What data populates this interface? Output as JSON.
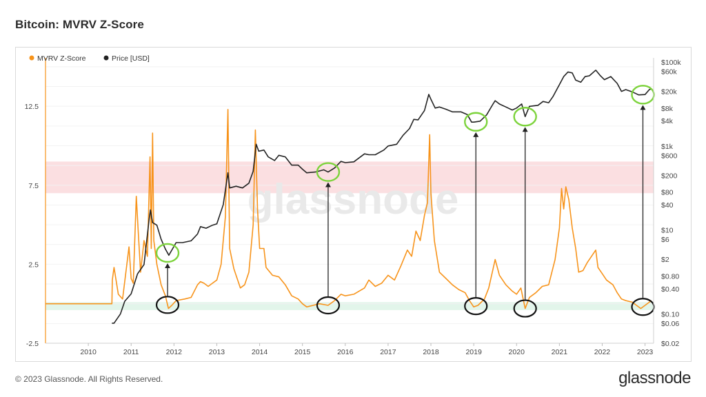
{
  "page": {
    "title": "Bitcoin: MVRV Z-Score",
    "footer": "© 2023 Glassnode. All Rights Reserved.",
    "brand": "glassnode",
    "watermark": "glassnode"
  },
  "chart_data": {
    "type": "line",
    "title": "Bitcoin: MVRV Z-Score",
    "legend": {
      "placement": "top-left",
      "items": [
        {
          "name": "MVRV Z-Score",
          "color": "#f7931a"
        },
        {
          "name": "Price [USD]",
          "color": "#222222"
        }
      ]
    },
    "x_ticks": [
      "2010",
      "2011",
      "2012",
      "2013",
      "2014",
      "2015",
      "2016",
      "2017",
      "2018",
      "2019",
      "2020",
      "2021",
      "2022",
      "2023"
    ],
    "x_range": [
      2009.0,
      2023.2
    ],
    "y_left": {
      "ticks": [
        "12.5",
        "7.5",
        "2.5",
        "-2.5"
      ],
      "tick_values": [
        12.5,
        7.5,
        2.5,
        -2.5
      ],
      "range": [
        -2.5,
        15.3
      ]
    },
    "y_right": {
      "scale": "log",
      "ticks": [
        "$100k",
        "$60k",
        "$20k",
        "$8k",
        "$4k",
        "$1k",
        "$600",
        "$200",
        "$80",
        "$40",
        "$10",
        "$6",
        "$2",
        "$0.80",
        "$0.40",
        "$0.10",
        "$0.06",
        "$0.02"
      ],
      "tick_values": [
        100000,
        60000,
        20000,
        8000,
        4000,
        1000,
        600,
        200,
        80,
        40,
        10,
        6,
        2,
        0.8,
        0.4,
        0.1,
        0.06,
        0.02
      ],
      "range": [
        0.02,
        100000
      ]
    },
    "bands": [
      {
        "name": "overvalued",
        "y_from": 7.0,
        "y_to": 9.0,
        "color": "#fbdfe1"
      },
      {
        "name": "undervalued",
        "y_from": -0.4,
        "y_to": 0.1,
        "color": "#e2f5ea"
      }
    ],
    "series": [
      {
        "name": "MVRV Z-Score",
        "axis": "left",
        "color": "#f7931a",
        "points": [
          [
            2009.0,
            0.0
          ],
          [
            2010.55,
            0.0
          ],
          [
            2010.56,
            1.5
          ],
          [
            2010.6,
            2.3
          ],
          [
            2010.7,
            0.6
          ],
          [
            2010.8,
            0.3
          ],
          [
            2010.95,
            3.6
          ],
          [
            2011.0,
            1.6
          ],
          [
            2011.05,
            1.3
          ],
          [
            2011.12,
            6.8
          ],
          [
            2011.16,
            4.8
          ],
          [
            2011.22,
            2.0
          ],
          [
            2011.3,
            4.0
          ],
          [
            2011.38,
            3.0
          ],
          [
            2011.44,
            9.3
          ],
          [
            2011.47,
            3.5
          ],
          [
            2011.5,
            10.8
          ],
          [
            2011.53,
            4.0
          ],
          [
            2011.6,
            2.5
          ],
          [
            2011.7,
            1.2
          ],
          [
            2011.8,
            0.5
          ],
          [
            2011.87,
            -0.3
          ],
          [
            2011.95,
            -0.1
          ],
          [
            2012.05,
            0.2
          ],
          [
            2012.25,
            0.3
          ],
          [
            2012.4,
            0.4
          ],
          [
            2012.55,
            1.2
          ],
          [
            2012.62,
            1.4
          ],
          [
            2012.7,
            1.3
          ],
          [
            2012.8,
            1.1
          ],
          [
            2012.9,
            1.3
          ],
          [
            2013.0,
            1.5
          ],
          [
            2013.1,
            2.5
          ],
          [
            2013.2,
            5.5
          ],
          [
            2013.26,
            12.3
          ],
          [
            2013.3,
            3.5
          ],
          [
            2013.4,
            2.2
          ],
          [
            2013.55,
            1.0
          ],
          [
            2013.65,
            1.2
          ],
          [
            2013.75,
            2.0
          ],
          [
            2013.85,
            5.0
          ],
          [
            2013.9,
            11.0
          ],
          [
            2013.95,
            6.0
          ],
          [
            2014.0,
            3.5
          ],
          [
            2014.1,
            3.5
          ],
          [
            2014.15,
            2.3
          ],
          [
            2014.3,
            1.8
          ],
          [
            2014.45,
            1.7
          ],
          [
            2014.6,
            1.2
          ],
          [
            2014.75,
            0.5
          ],
          [
            2014.9,
            0.3
          ],
          [
            2015.0,
            0.0
          ],
          [
            2015.1,
            -0.2
          ],
          [
            2015.25,
            -0.1
          ],
          [
            2015.4,
            0.0
          ],
          [
            2015.6,
            -0.1
          ],
          [
            2015.75,
            0.2
          ],
          [
            2015.9,
            0.6
          ],
          [
            2016.0,
            0.5
          ],
          [
            2016.2,
            0.6
          ],
          [
            2016.45,
            1.0
          ],
          [
            2016.55,
            1.5
          ],
          [
            2016.7,
            1.1
          ],
          [
            2016.85,
            1.3
          ],
          [
            2017.0,
            1.8
          ],
          [
            2017.15,
            1.5
          ],
          [
            2017.3,
            2.4
          ],
          [
            2017.45,
            3.4
          ],
          [
            2017.55,
            3.0
          ],
          [
            2017.65,
            4.6
          ],
          [
            2017.75,
            4.0
          ],
          [
            2017.85,
            5.6
          ],
          [
            2017.92,
            6.4
          ],
          [
            2017.97,
            10.7
          ],
          [
            2018.0,
            7.0
          ],
          [
            2018.08,
            4.0
          ],
          [
            2018.2,
            2.0
          ],
          [
            2018.35,
            1.6
          ],
          [
            2018.5,
            1.2
          ],
          [
            2018.65,
            0.9
          ],
          [
            2018.8,
            0.7
          ],
          [
            2018.9,
            0.2
          ],
          [
            2019.0,
            -0.2
          ],
          [
            2019.1,
            -0.1
          ],
          [
            2019.25,
            0.3
          ],
          [
            2019.35,
            1.0
          ],
          [
            2019.45,
            2.2
          ],
          [
            2019.5,
            2.8
          ],
          [
            2019.6,
            1.8
          ],
          [
            2019.75,
            1.2
          ],
          [
            2019.9,
            0.8
          ],
          [
            2020.0,
            0.6
          ],
          [
            2020.1,
            1.0
          ],
          [
            2020.2,
            -0.3
          ],
          [
            2020.3,
            0.4
          ],
          [
            2020.45,
            0.7
          ],
          [
            2020.6,
            1.1
          ],
          [
            2020.75,
            1.2
          ],
          [
            2020.9,
            2.8
          ],
          [
            2021.0,
            4.8
          ],
          [
            2021.05,
            7.3
          ],
          [
            2021.1,
            6.0
          ],
          [
            2021.15,
            7.4
          ],
          [
            2021.22,
            6.6
          ],
          [
            2021.3,
            4.8
          ],
          [
            2021.38,
            3.5
          ],
          [
            2021.45,
            2.0
          ],
          [
            2021.55,
            2.1
          ],
          [
            2021.65,
            2.6
          ],
          [
            2021.75,
            3.0
          ],
          [
            2021.85,
            3.4
          ],
          [
            2021.9,
            2.3
          ],
          [
            2022.0,
            1.9
          ],
          [
            2022.1,
            1.5
          ],
          [
            2022.25,
            1.2
          ],
          [
            2022.35,
            0.7
          ],
          [
            2022.45,
            0.3
          ],
          [
            2022.55,
            0.2
          ],
          [
            2022.7,
            0.1
          ],
          [
            2022.8,
            -0.1
          ],
          [
            2022.9,
            -0.3
          ],
          [
            2023.0,
            -0.1
          ],
          [
            2023.1,
            0.1
          ],
          [
            2023.15,
            0.2
          ]
        ]
      },
      {
        "name": "Price [USD]",
        "axis": "right",
        "color": "#222222",
        "points": [
          [
            2010.55,
            0.06
          ],
          [
            2010.6,
            0.06
          ],
          [
            2010.75,
            0.1
          ],
          [
            2010.85,
            0.2
          ],
          [
            2011.0,
            0.3
          ],
          [
            2011.15,
            0.9
          ],
          [
            2011.3,
            1.5
          ],
          [
            2011.42,
            18
          ],
          [
            2011.45,
            30
          ],
          [
            2011.5,
            15
          ],
          [
            2011.6,
            13
          ],
          [
            2011.7,
            6
          ],
          [
            2011.8,
            3.5
          ],
          [
            2011.88,
            2.5
          ],
          [
            2011.95,
            3.3
          ],
          [
            2012.05,
            5
          ],
          [
            2012.2,
            5
          ],
          [
            2012.4,
            5.5
          ],
          [
            2012.55,
            8
          ],
          [
            2012.62,
            12
          ],
          [
            2012.75,
            11
          ],
          [
            2012.9,
            13
          ],
          [
            2013.0,
            14
          ],
          [
            2013.15,
            40
          ],
          [
            2013.26,
            230
          ],
          [
            2013.3,
            100
          ],
          [
            2013.45,
            110
          ],
          [
            2013.6,
            100
          ],
          [
            2013.75,
            130
          ],
          [
            2013.85,
            250
          ],
          [
            2013.92,
            1100
          ],
          [
            2013.98,
            750
          ],
          [
            2014.1,
            800
          ],
          [
            2014.2,
            550
          ],
          [
            2014.35,
            450
          ],
          [
            2014.45,
            600
          ],
          [
            2014.6,
            550
          ],
          [
            2014.75,
            350
          ],
          [
            2014.9,
            350
          ],
          [
            2015.0,
            280
          ],
          [
            2015.1,
            230
          ],
          [
            2015.3,
            240
          ],
          [
            2015.5,
            270
          ],
          [
            2015.6,
            240
          ],
          [
            2015.75,
            300
          ],
          [
            2015.9,
            430
          ],
          [
            2016.0,
            400
          ],
          [
            2016.2,
            420
          ],
          [
            2016.45,
            650
          ],
          [
            2016.55,
            620
          ],
          [
            2016.7,
            620
          ],
          [
            2016.9,
            800
          ],
          [
            2017.0,
            1000
          ],
          [
            2017.2,
            1100
          ],
          [
            2017.35,
            1800
          ],
          [
            2017.5,
            2600
          ],
          [
            2017.6,
            4300
          ],
          [
            2017.7,
            4200
          ],
          [
            2017.85,
            7000
          ],
          [
            2017.95,
            17000
          ],
          [
            2018.0,
            13000
          ],
          [
            2018.1,
            8000
          ],
          [
            2018.2,
            8500
          ],
          [
            2018.35,
            7500
          ],
          [
            2018.5,
            6500
          ],
          [
            2018.7,
            6500
          ],
          [
            2018.85,
            5600
          ],
          [
            2018.95,
            3700
          ],
          [
            2019.0,
            3700
          ],
          [
            2019.15,
            3900
          ],
          [
            2019.3,
            5500
          ],
          [
            2019.45,
            10000
          ],
          [
            2019.5,
            12000
          ],
          [
            2019.6,
            10000
          ],
          [
            2019.75,
            8500
          ],
          [
            2019.9,
            7200
          ],
          [
            2020.0,
            8000
          ],
          [
            2020.12,
            10000
          ],
          [
            2020.2,
            5000
          ],
          [
            2020.3,
            8800
          ],
          [
            2020.5,
            9300
          ],
          [
            2020.62,
            11500
          ],
          [
            2020.75,
            10700
          ],
          [
            2020.85,
            15000
          ],
          [
            2021.0,
            29000
          ],
          [
            2021.1,
            45000
          ],
          [
            2021.2,
            58000
          ],
          [
            2021.3,
            55000
          ],
          [
            2021.38,
            37000
          ],
          [
            2021.5,
            33000
          ],
          [
            2021.6,
            45000
          ],
          [
            2021.7,
            47000
          ],
          [
            2021.85,
            64000
          ],
          [
            2021.95,
            48000
          ],
          [
            2022.05,
            38000
          ],
          [
            2022.2,
            45000
          ],
          [
            2022.35,
            31000
          ],
          [
            2022.45,
            20000
          ],
          [
            2022.55,
            22000
          ],
          [
            2022.7,
            19500
          ],
          [
            2022.85,
            16500
          ],
          [
            2023.0,
            16800
          ],
          [
            2023.1,
            22000
          ],
          [
            2023.15,
            23000
          ]
        ]
      }
    ],
    "annotations": {
      "circles_green_price": [
        2011.85,
        2015.6,
        2019.05,
        2020.2,
        2022.95
      ],
      "circles_black_z": [
        2011.85,
        2015.6,
        2019.05,
        2020.2,
        2022.95
      ],
      "arrows": "from Z-Score lows up to price lows"
    }
  }
}
